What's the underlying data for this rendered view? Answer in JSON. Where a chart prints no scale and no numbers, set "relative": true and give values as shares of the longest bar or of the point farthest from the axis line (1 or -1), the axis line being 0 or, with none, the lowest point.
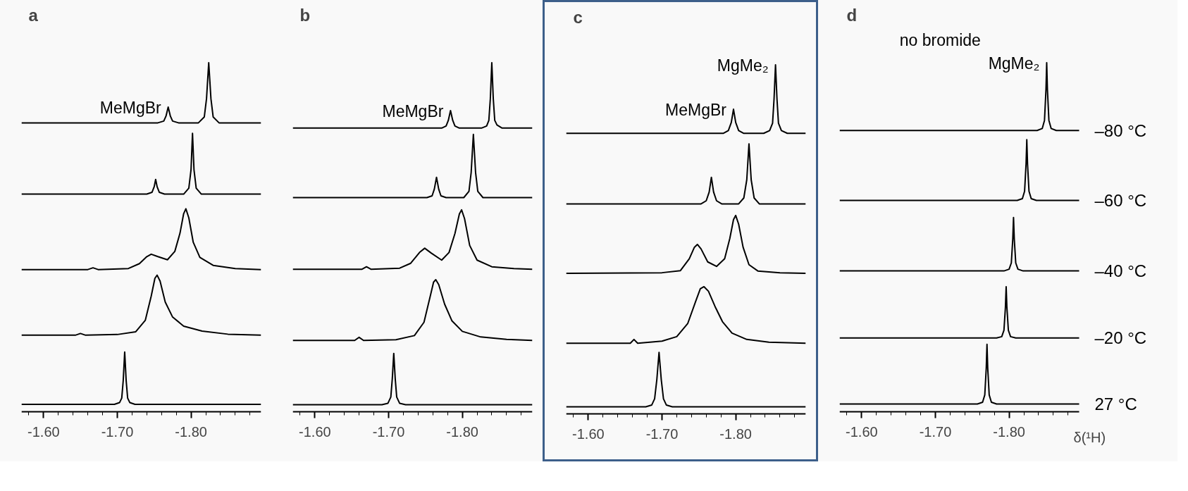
{
  "chart_data": [
    {
      "type": "line",
      "relative": true,
      "title": "a",
      "xlim": [
        -1.57,
        -1.895
      ],
      "xticks": [
        {
          "value": -1.58,
          "label": null
        },
        {
          "value": -1.6,
          "label": "-1.60"
        },
        {
          "value": -1.62,
          "label": null
        },
        {
          "value": -1.64,
          "label": null
        },
        {
          "value": -1.66,
          "label": null
        },
        {
          "value": -1.68,
          "label": null
        },
        {
          "value": -1.7,
          "label": "-1.70"
        },
        {
          "value": -1.72,
          "label": null
        },
        {
          "value": -1.74,
          "label": null
        },
        {
          "value": -1.76,
          "label": null
        },
        {
          "value": -1.78,
          "label": null
        },
        {
          "value": -1.8,
          "label": "-1.80"
        },
        {
          "value": -1.82,
          "label": null
        },
        {
          "value": -1.84,
          "label": null
        },
        {
          "value": -1.86,
          "label": null
        },
        {
          "value": -1.88,
          "label": null
        }
      ],
      "annotations": [
        {
          "text": "MeMgBr",
          "x": -1.769,
          "y": 0.873
        }
      ],
      "series": [
        {
          "color": "#000000",
          "x": [
            -1.57,
            -1.755,
            -1.763,
            -1.766,
            -1.769,
            -1.772,
            -1.775,
            -1.783,
            -1.81,
            -1.818,
            -1.821,
            -1.824,
            -1.827,
            -1.83,
            -1.838,
            -1.895
          ],
          "values": [
            0.828,
            0.828,
            0.833,
            0.847,
            0.873,
            0.847,
            0.833,
            0.828,
            0.828,
            0.845,
            0.897,
            1.0,
            0.897,
            0.845,
            0.828,
            0.828
          ]
        },
        {
          "color": "#000000",
          "x": [
            -1.57,
            -1.74,
            -1.747,
            -1.75,
            -1.752,
            -1.754,
            -1.757,
            -1.764,
            -1.79,
            -1.797,
            -1.8,
            -1.802,
            -1.804,
            -1.807,
            -1.814,
            -1.895
          ],
          "values": [
            0.624,
            0.624,
            0.629,
            0.645,
            0.666,
            0.645,
            0.629,
            0.624,
            0.624,
            0.641,
            0.694,
            0.798,
            0.694,
            0.641,
            0.624,
            0.624
          ]
        },
        {
          "color": "#000000",
          "x": [
            -1.57,
            -1.66,
            -1.667,
            -1.674,
            -1.715,
            -1.73,
            -1.74,
            -1.746,
            -1.755,
            -1.768,
            -1.778,
            -1.785,
            -1.79,
            -1.793,
            -1.797,
            -1.803,
            -1.812,
            -1.83,
            -1.86,
            -1.895
          ],
          "values": [
            0.408,
            0.408,
            0.413,
            0.408,
            0.411,
            0.425,
            0.445,
            0.452,
            0.445,
            0.436,
            0.46,
            0.512,
            0.568,
            0.582,
            0.556,
            0.486,
            0.443,
            0.42,
            0.411,
            0.408
          ]
        },
        {
          "color": "#000000",
          "x": [
            -1.57,
            -1.643,
            -1.65,
            -1.657,
            -1.7,
            -1.725,
            -1.738,
            -1.746,
            -1.751,
            -1.754,
            -1.758,
            -1.765,
            -1.775,
            -1.79,
            -1.815,
            -1.85,
            -1.895
          ],
          "values": [
            0.22,
            0.22,
            0.225,
            0.22,
            0.222,
            0.23,
            0.263,
            0.332,
            0.383,
            0.392,
            0.375,
            0.315,
            0.272,
            0.246,
            0.232,
            0.223,
            0.22
          ]
        },
        {
          "color": "#000000",
          "x": [
            -1.57,
            -1.696,
            -1.703,
            -1.706,
            -1.708,
            -1.71,
            -1.712,
            -1.714,
            -1.717,
            -1.724,
            -1.895
          ],
          "values": [
            0.022,
            0.022,
            0.027,
            0.04,
            0.09,
            0.172,
            0.09,
            0.04,
            0.027,
            0.022,
            0.022
          ]
        }
      ]
    },
    {
      "type": "line",
      "relative": true,
      "title": "b",
      "xlim": [
        -1.57,
        -1.895
      ],
      "xticks": [
        {
          "value": -1.58,
          "label": null
        },
        {
          "value": -1.6,
          "label": "-1.60"
        },
        {
          "value": -1.62,
          "label": null
        },
        {
          "value": -1.64,
          "label": null
        },
        {
          "value": -1.66,
          "label": null
        },
        {
          "value": -1.68,
          "label": null
        },
        {
          "value": -1.7,
          "label": "-1.70"
        },
        {
          "value": -1.72,
          "label": null
        },
        {
          "value": -1.74,
          "label": null
        },
        {
          "value": -1.76,
          "label": null
        },
        {
          "value": -1.78,
          "label": null
        },
        {
          "value": -1.8,
          "label": "-1.80"
        },
        {
          "value": -1.82,
          "label": null
        },
        {
          "value": -1.84,
          "label": null
        },
        {
          "value": -1.86,
          "label": null
        },
        {
          "value": -1.88,
          "label": null
        }
      ],
      "annotations": [
        {
          "text": "MeMgBr",
          "x": -1.784,
          "y": 0.863
        }
      ],
      "series": [
        {
          "color": "#000000",
          "x": [
            -1.57,
            -1.772,
            -1.778,
            -1.781,
            -1.784,
            -1.787,
            -1.79,
            -1.796,
            -1.826,
            -1.833,
            -1.836,
            -1.838,
            -1.84,
            -1.842,
            -1.844,
            -1.847,
            -1.854,
            -1.895
          ],
          "values": [
            0.813,
            0.813,
            0.819,
            0.835,
            0.863,
            0.835,
            0.819,
            0.813,
            0.813,
            0.819,
            0.835,
            0.897,
            1.0,
            0.897,
            0.835,
            0.822,
            0.813,
            0.813
          ]
        },
        {
          "color": "#000000",
          "x": [
            -1.57,
            -1.752,
            -1.759,
            -1.762,
            -1.765,
            -1.768,
            -1.771,
            -1.778,
            -1.802,
            -1.809,
            -1.812,
            -1.815,
            -1.818,
            -1.821,
            -1.828,
            -1.895
          ],
          "values": [
            0.614,
            0.614,
            0.619,
            0.638,
            0.672,
            0.638,
            0.619,
            0.614,
            0.614,
            0.632,
            0.686,
            0.795,
            0.686,
            0.632,
            0.614,
            0.614
          ]
        },
        {
          "color": "#000000",
          "x": [
            -1.57,
            -1.664,
            -1.67,
            -1.676,
            -1.715,
            -1.73,
            -1.742,
            -1.749,
            -1.758,
            -1.772,
            -1.782,
            -1.79,
            -1.796,
            -1.799,
            -1.803,
            -1.81,
            -1.82,
            -1.84,
            -1.87,
            -1.895
          ],
          "values": [
            0.409,
            0.409,
            0.416,
            0.409,
            0.412,
            0.426,
            0.457,
            0.469,
            0.455,
            0.435,
            0.457,
            0.511,
            0.567,
            0.579,
            0.554,
            0.477,
            0.435,
            0.416,
            0.411,
            0.409
          ]
        },
        {
          "color": "#000000",
          "x": [
            -1.57,
            -1.654,
            -1.66,
            -1.666,
            -1.71,
            -1.735,
            -1.748,
            -1.757,
            -1.761,
            -1.764,
            -1.768,
            -1.776,
            -1.786,
            -1.8,
            -1.825,
            -1.86,
            -1.895
          ],
          "values": [
            0.205,
            0.205,
            0.214,
            0.205,
            0.207,
            0.219,
            0.257,
            0.336,
            0.372,
            0.379,
            0.365,
            0.309,
            0.261,
            0.231,
            0.215,
            0.208,
            0.205
          ]
        },
        {
          "color": "#000000",
          "x": [
            -1.57,
            -1.691,
            -1.699,
            -1.703,
            -1.705,
            -1.707,
            -1.709,
            -1.711,
            -1.715,
            -1.723,
            -1.895
          ],
          "values": [
            0.021,
            0.021,
            0.025,
            0.043,
            0.095,
            0.168,
            0.095,
            0.043,
            0.025,
            0.021,
            0.021
          ]
        }
      ]
    },
    {
      "type": "line",
      "relative": true,
      "title": "c",
      "xlim": [
        -1.57,
        -1.895
      ],
      "xticks": [
        {
          "value": -1.58,
          "label": null
        },
        {
          "value": -1.6,
          "label": "-1.60"
        },
        {
          "value": -1.62,
          "label": null
        },
        {
          "value": -1.64,
          "label": null
        },
        {
          "value": -1.66,
          "label": null
        },
        {
          "value": -1.68,
          "label": null
        },
        {
          "value": -1.7,
          "label": "-1.70"
        },
        {
          "value": -1.72,
          "label": null
        },
        {
          "value": -1.74,
          "label": null
        },
        {
          "value": -1.76,
          "label": null
        },
        {
          "value": -1.78,
          "label": null
        },
        {
          "value": -1.8,
          "label": "-1.80"
        },
        {
          "value": -1.82,
          "label": null
        },
        {
          "value": -1.84,
          "label": null
        },
        {
          "value": -1.86,
          "label": null
        },
        {
          "value": -1.88,
          "label": null
        }
      ],
      "annotations": [
        {
          "text": "MeMgBr",
          "x": -1.797,
          "y": 0.873
        },
        {
          "text": "MgMe₂",
          "x": -1.854,
          "y": 1.0
        }
      ],
      "series": [
        {
          "color": "#000000",
          "x": [
            -1.57,
            -1.783,
            -1.79,
            -1.794,
            -1.797,
            -1.8,
            -1.804,
            -1.811,
            -1.838,
            -1.846,
            -1.85,
            -1.852,
            -1.854,
            -1.856,
            -1.858,
            -1.862,
            -1.87,
            -1.895
          ],
          "values": [
            0.804,
            0.804,
            0.812,
            0.835,
            0.873,
            0.835,
            0.812,
            0.804,
            0.804,
            0.812,
            0.833,
            0.902,
            1.0,
            0.902,
            0.833,
            0.812,
            0.804,
            0.804
          ]
        },
        {
          "color": "#000000",
          "x": [
            -1.57,
            -1.753,
            -1.76,
            -1.764,
            -1.767,
            -1.77,
            -1.774,
            -1.781,
            -1.804,
            -1.811,
            -1.815,
            -1.818,
            -1.821,
            -1.825,
            -1.832,
            -1.895
          ],
          "values": [
            0.602,
            0.602,
            0.611,
            0.636,
            0.678,
            0.636,
            0.611,
            0.602,
            0.602,
            0.619,
            0.671,
            0.774,
            0.671,
            0.619,
            0.602,
            0.602
          ]
        },
        {
          "color": "#000000",
          "x": [
            -1.57,
            -1.7,
            -1.725,
            -1.737,
            -1.744,
            -1.748,
            -1.753,
            -1.762,
            -1.774,
            -1.785,
            -1.792,
            -1.797,
            -1.8,
            -1.804,
            -1.81,
            -1.818,
            -1.83,
            -1.86,
            -1.895
          ],
          "values": [
            0.403,
            0.405,
            0.411,
            0.445,
            0.478,
            0.486,
            0.473,
            0.436,
            0.423,
            0.445,
            0.503,
            0.557,
            0.569,
            0.544,
            0.478,
            0.428,
            0.41,
            0.405,
            0.403
          ]
        },
        {
          "color": "#000000",
          "x": [
            -1.57,
            -1.657,
            -1.662,
            -1.667,
            -1.7,
            -1.72,
            -1.735,
            -1.746,
            -1.752,
            -1.757,
            -1.763,
            -1.772,
            -1.782,
            -1.795,
            -1.815,
            -1.845,
            -1.895
          ],
          "values": [
            0.203,
            0.203,
            0.214,
            0.203,
            0.209,
            0.222,
            0.26,
            0.325,
            0.359,
            0.365,
            0.352,
            0.308,
            0.265,
            0.232,
            0.214,
            0.206,
            0.203
          ]
        },
        {
          "color": "#000000",
          "x": [
            -1.57,
            -1.678,
            -1.686,
            -1.69,
            -1.693,
            -1.696,
            -1.699,
            -1.702,
            -1.706,
            -1.714,
            -1.895
          ],
          "values": [
            0.021,
            0.021,
            0.026,
            0.044,
            0.099,
            0.177,
            0.099,
            0.044,
            0.026,
            0.021,
            0.021
          ]
        }
      ]
    },
    {
      "type": "line",
      "relative": true,
      "title": "d",
      "subtitle": "no bromide",
      "xlabel": "δ(¹H)",
      "xlim": [
        -1.57,
        -1.895
      ],
      "xticks": [
        {
          "value": -1.58,
          "label": null
        },
        {
          "value": -1.6,
          "label": "-1.60"
        },
        {
          "value": -1.62,
          "label": null
        },
        {
          "value": -1.64,
          "label": null
        },
        {
          "value": -1.66,
          "label": null
        },
        {
          "value": -1.68,
          "label": null
        },
        {
          "value": -1.7,
          "label": "-1.70"
        },
        {
          "value": -1.72,
          "label": null
        },
        {
          "value": -1.74,
          "label": null
        },
        {
          "value": -1.76,
          "label": null
        },
        {
          "value": -1.78,
          "label": null
        },
        {
          "value": -1.8,
          "label": "-1.80"
        },
        {
          "value": -1.82,
          "label": null
        },
        {
          "value": -1.84,
          "label": null
        },
        {
          "value": -1.86,
          "label": null
        },
        {
          "value": -1.88,
          "label": null
        }
      ],
      "annotations": [
        {
          "text": "MgMe₂",
          "x": -1.851,
          "y": 1.0
        }
      ],
      "series": [
        {
          "name": "–80 °C",
          "color": "#000000",
          "x": [
            -1.57,
            -1.838,
            -1.845,
            -1.848,
            -1.85,
            -1.851,
            -1.852,
            -1.854,
            -1.857,
            -1.864,
            -1.895
          ],
          "values": [
            0.806,
            0.806,
            0.812,
            0.835,
            0.922,
            1.0,
            0.922,
            0.835,
            0.812,
            0.806,
            0.806
          ]
        },
        {
          "name": "–60 °C",
          "color": "#000000",
          "x": [
            -1.57,
            -1.811,
            -1.818,
            -1.821,
            -1.823,
            -1.824,
            -1.825,
            -1.827,
            -1.83,
            -1.837,
            -1.895
          ],
          "values": [
            0.606,
            0.606,
            0.611,
            0.632,
            0.71,
            0.78,
            0.71,
            0.632,
            0.611,
            0.606,
            0.606
          ]
        },
        {
          "name": "–40 °C",
          "color": "#000000",
          "x": [
            -1.57,
            -1.793,
            -1.8,
            -1.803,
            -1.805,
            -1.806,
            -1.807,
            -1.809,
            -1.812,
            -1.819,
            -1.895
          ],
          "values": [
            0.404,
            0.404,
            0.409,
            0.427,
            0.496,
            0.557,
            0.496,
            0.427,
            0.409,
            0.404,
            0.404
          ]
        },
        {
          "name": "–20 °C",
          "color": "#000000",
          "x": [
            -1.57,
            -1.783,
            -1.79,
            -1.793,
            -1.795,
            -1.796,
            -1.797,
            -1.799,
            -1.802,
            -1.809,
            -1.895
          ],
          "values": [
            0.212,
            0.212,
            0.216,
            0.234,
            0.3,
            0.359,
            0.3,
            0.234,
            0.216,
            0.212,
            0.212
          ]
        },
        {
          "name": "27 °C",
          "color": "#000000",
          "x": [
            -1.57,
            -1.757,
            -1.764,
            -1.767,
            -1.769,
            -1.77,
            -1.771,
            -1.773,
            -1.776,
            -1.783,
            -1.895
          ],
          "values": [
            0.023,
            0.023,
            0.028,
            0.049,
            0.126,
            0.194,
            0.126,
            0.049,
            0.028,
            0.023,
            0.023
          ]
        }
      ]
    }
  ]
}
